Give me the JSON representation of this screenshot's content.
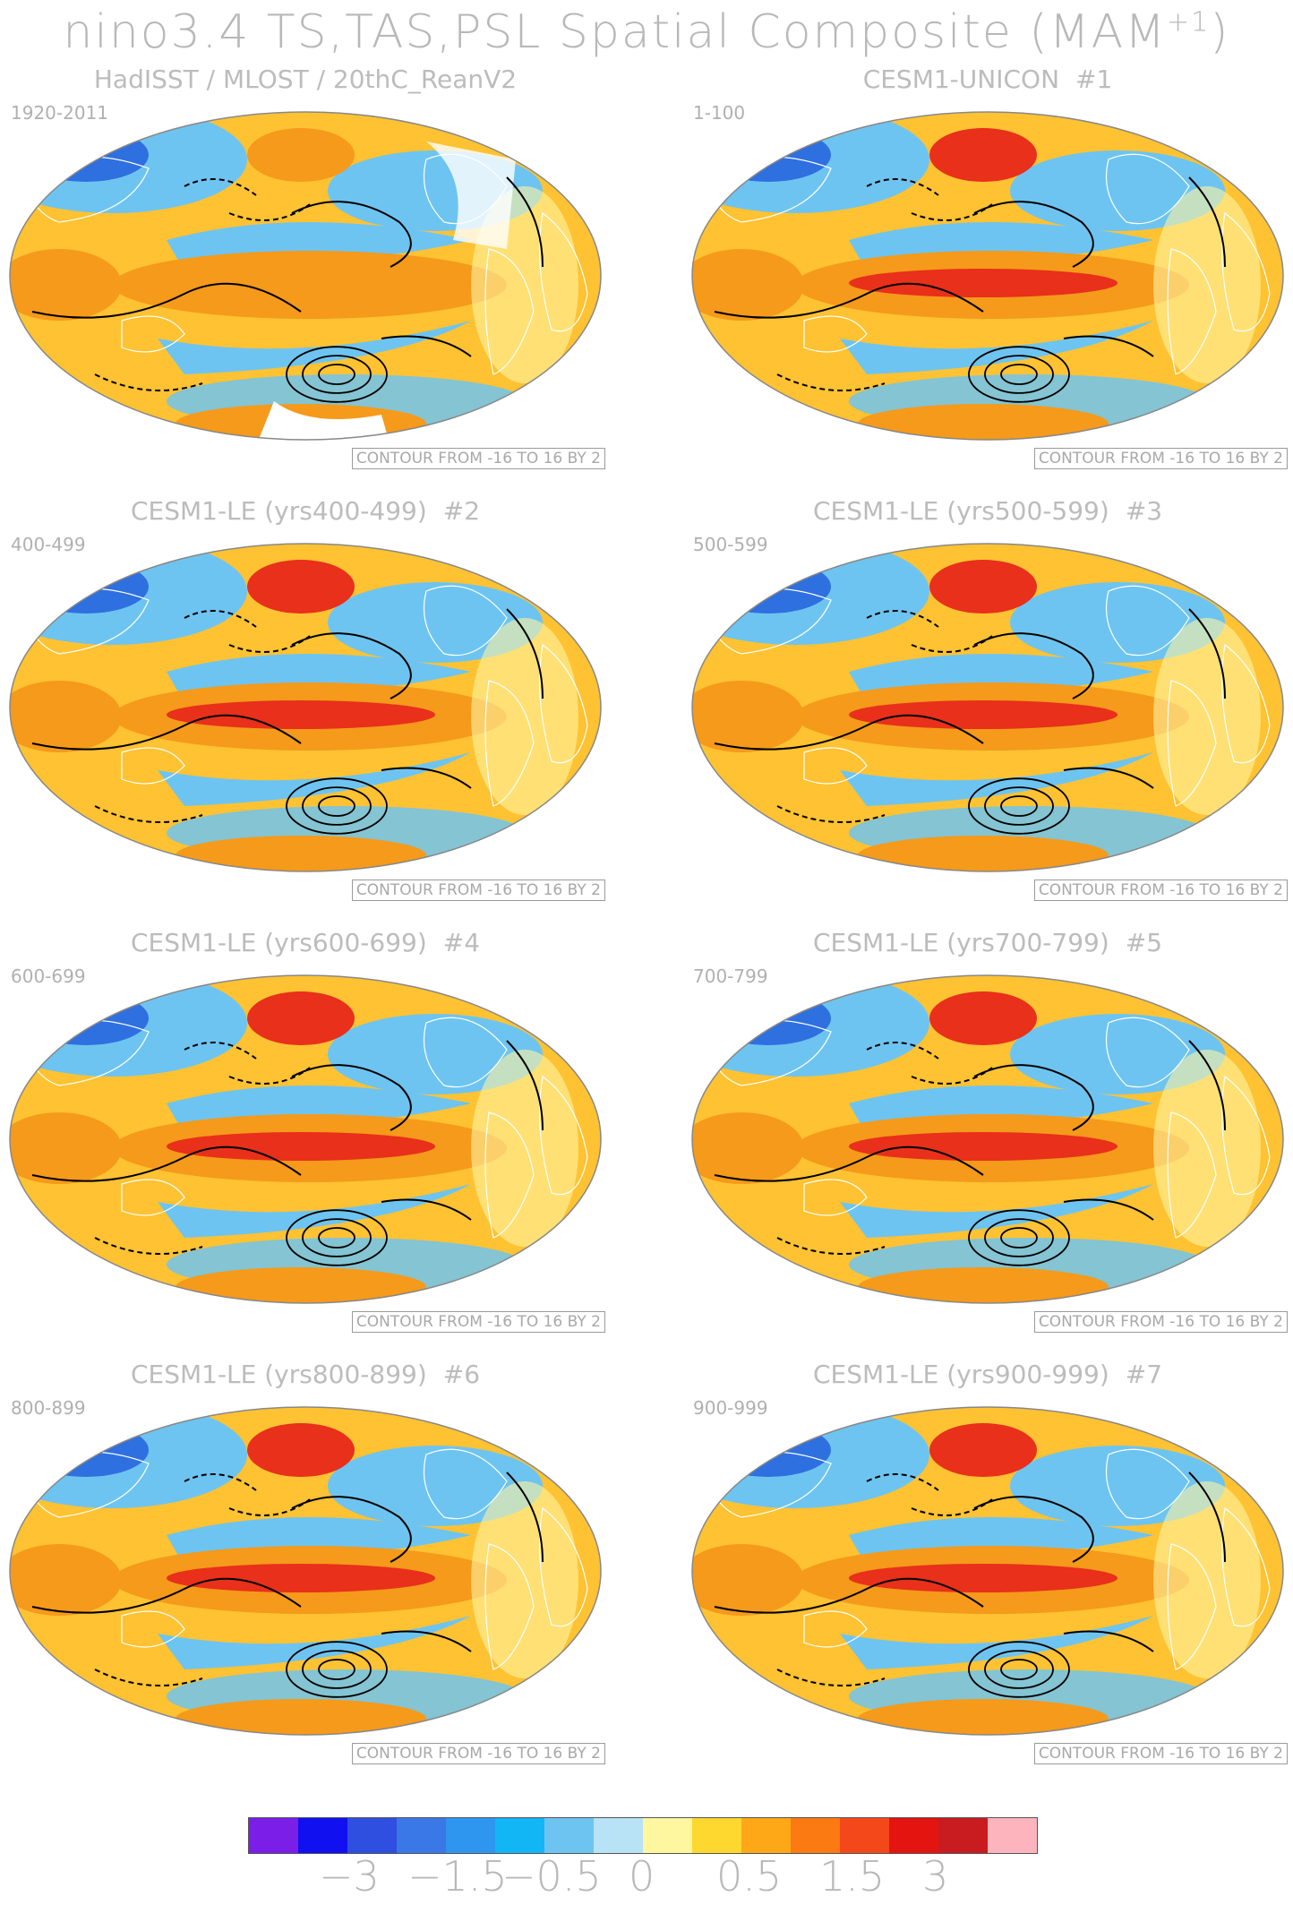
{
  "title": {
    "text": "nino3.4 TS,TAS,PSL Spatial Composite (MAM",
    "sup": "+1",
    "close": ")"
  },
  "contour_note": "CONTOUR FROM -16 TO 16 BY 2",
  "panels": [
    {
      "title": "HadISST / MLOST / 20thC_ReanV2",
      "num": "",
      "years": "1920-2011"
    },
    {
      "title": "CESM1-UNICON",
      "num": "#1",
      "years": "1-100"
    },
    {
      "title": "CESM1-LE (yrs400-499)",
      "num": "#2",
      "years": "400-499"
    },
    {
      "title": "CESM1-LE (yrs500-599)",
      "num": "#3",
      "years": "500-599"
    },
    {
      "title": "CESM1-LE (yrs600-699)",
      "num": "#4",
      "years": "600-699"
    },
    {
      "title": "CESM1-LE (yrs700-799)",
      "num": "#5",
      "years": "700-799"
    },
    {
      "title": "CESM1-LE (yrs800-899)",
      "num": "#6",
      "years": "800-899"
    },
    {
      "title": "CESM1-LE (yrs900-999)",
      "num": "#7",
      "years": "900-999"
    }
  ],
  "colorbar": {
    "colors": [
      "#7b1fe8",
      "#1010f0",
      "#2f4fe0",
      "#3a78e8",
      "#2f96f0",
      "#12b6f5",
      "#6ec4f0",
      "#b8e2f6",
      "#fff6a0",
      "#fed82e",
      "#fea818",
      "#fb7a12",
      "#f4481a",
      "#e41410",
      "#c81c20",
      "#fdb4bc"
    ],
    "labels": [
      "−3",
      "−1.5",
      "−0.5",
      "0",
      "0.5",
      "1.5",
      "3"
    ]
  },
  "map_colors": {
    "base_warm": "#fec232",
    "mid_warm": "#f59a1a",
    "hot": "#e8301a",
    "cool": "#6ec4f0",
    "cold": "#2f70e0",
    "pale": "#fff3a0",
    "land_line": "#ffffff",
    "contour": "#000000"
  }
}
